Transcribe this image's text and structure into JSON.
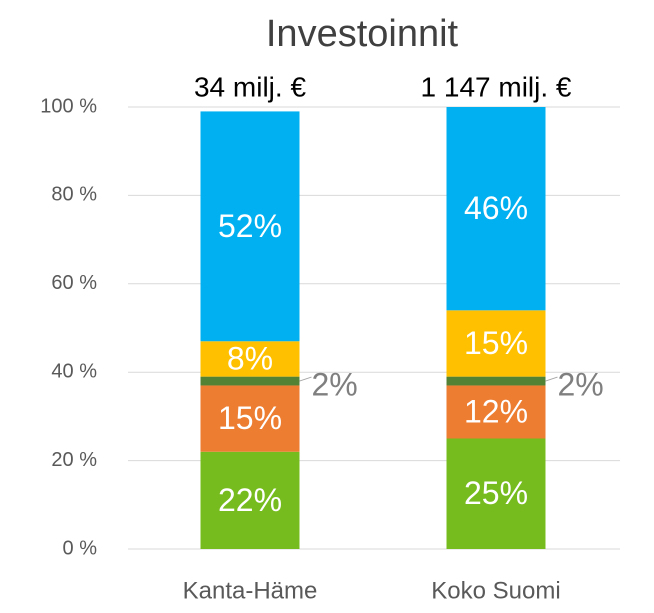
{
  "chart_data": {
    "type": "stacked_bar",
    "title": "Investoinnit",
    "categories": [
      "Kanta-Häme",
      "Koko Suomi"
    ],
    "total_labels": [
      "34 milj. €",
      "1 147 milj. €"
    ],
    "series": [
      {
        "color": "#77bc1f",
        "values": [
          22,
          25
        ],
        "value_labels": [
          "22%",
          "25%"
        ]
      },
      {
        "color": "#ed7d31",
        "values": [
          15,
          12
        ],
        "value_labels": [
          "15%",
          "12%"
        ]
      },
      {
        "color": "#548235",
        "values": [
          2,
          2
        ],
        "value_labels": [
          "2%",
          "2%"
        ]
      },
      {
        "color": "#ffc000",
        "values": [
          8,
          15
        ],
        "value_labels": [
          "8%",
          "15%"
        ]
      },
      {
        "color": "#00b0f0",
        "values": [
          52,
          46
        ],
        "value_labels": [
          "52%",
          "46%"
        ]
      }
    ],
    "ylim": [
      0,
      100
    ],
    "yticks": [
      {
        "value": 0,
        "label": "0 %"
      },
      {
        "value": 20,
        "label": "20 %"
      },
      {
        "value": 40,
        "label": "40 %"
      },
      {
        "value": 60,
        "label": "60 %"
      },
      {
        "value": 80,
        "label": "80 %"
      },
      {
        "value": 100,
        "label": "100 %"
      }
    ],
    "grid": true
  }
}
